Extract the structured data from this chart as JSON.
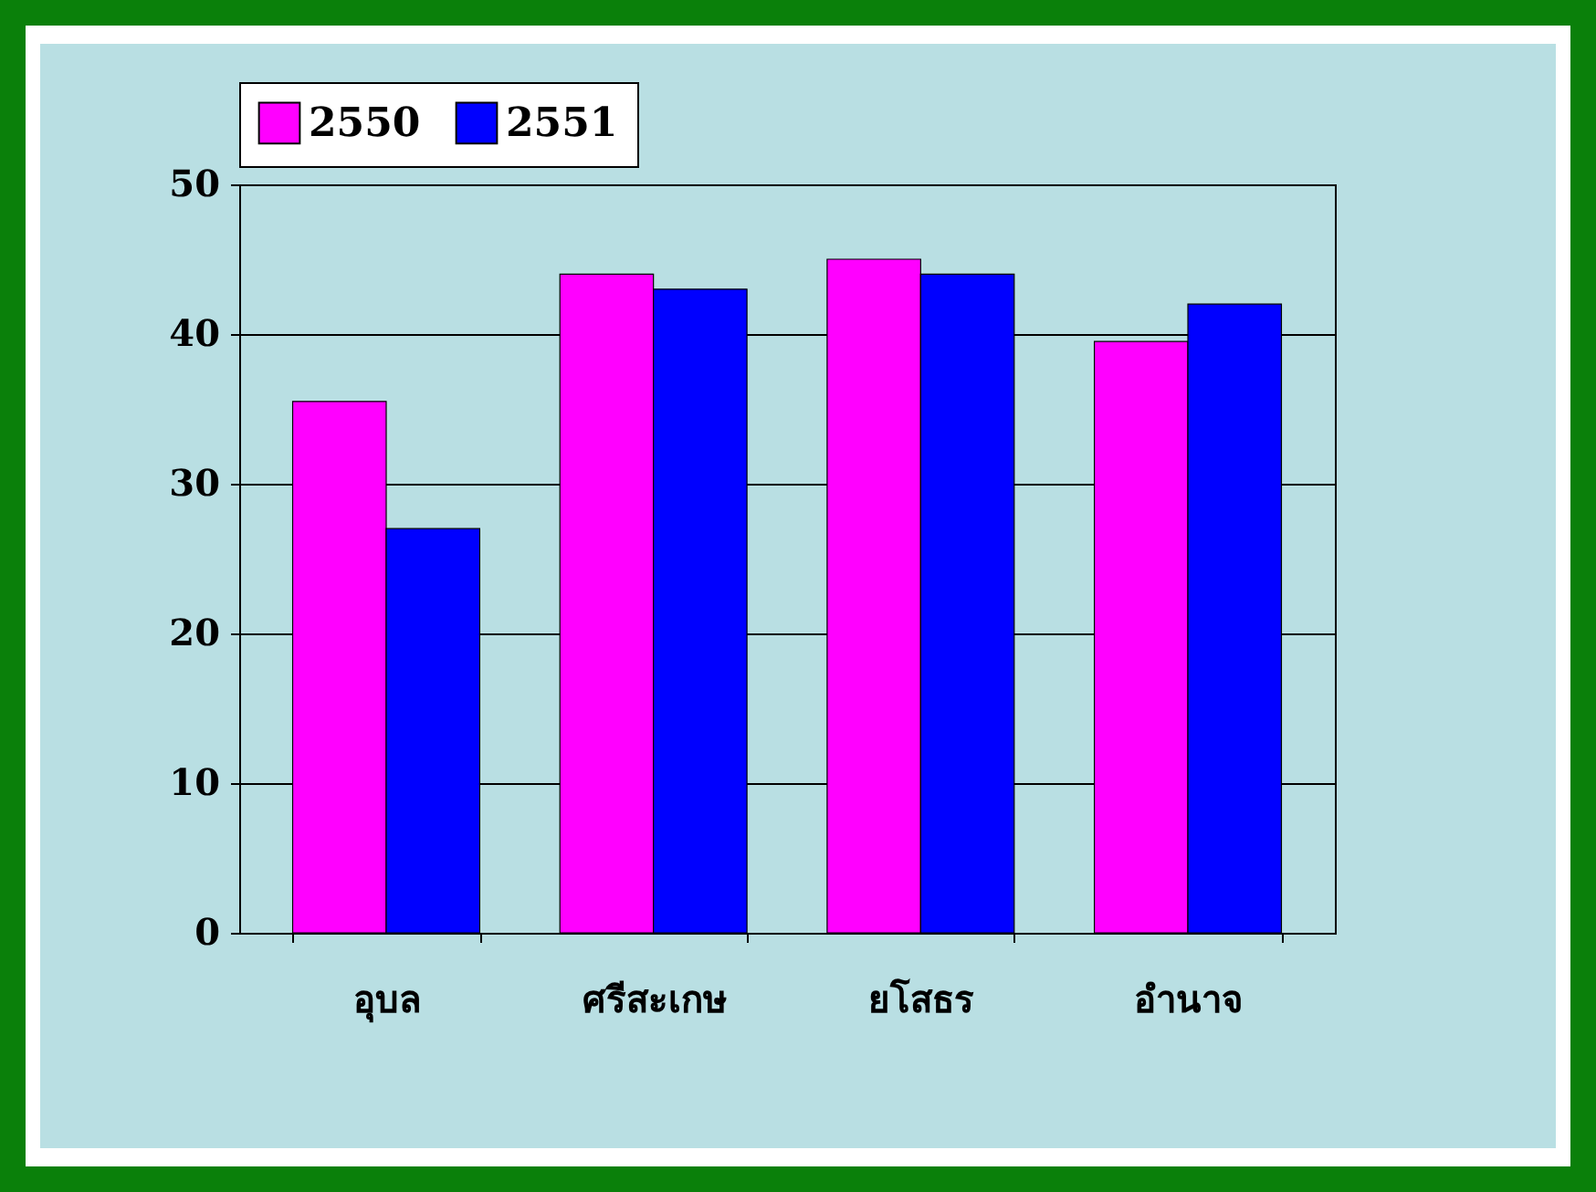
{
  "chart_data": {
    "type": "bar",
    "categories": [
      "อุบล",
      "ศรีสะเกษ",
      "ยโสธร",
      "อำนาจ"
    ],
    "series": [
      {
        "name": "2550",
        "color": "#ff00ff",
        "values": [
          35.5,
          44,
          45,
          39.5
        ]
      },
      {
        "name": "2551",
        "color": "#0000ff",
        "values": [
          27,
          43,
          44,
          42
        ]
      }
    ],
    "ylim": [
      0,
      50
    ],
    "yticks": [
      0,
      10,
      20,
      30,
      40,
      50
    ],
    "grid": "y",
    "legend": "top"
  }
}
